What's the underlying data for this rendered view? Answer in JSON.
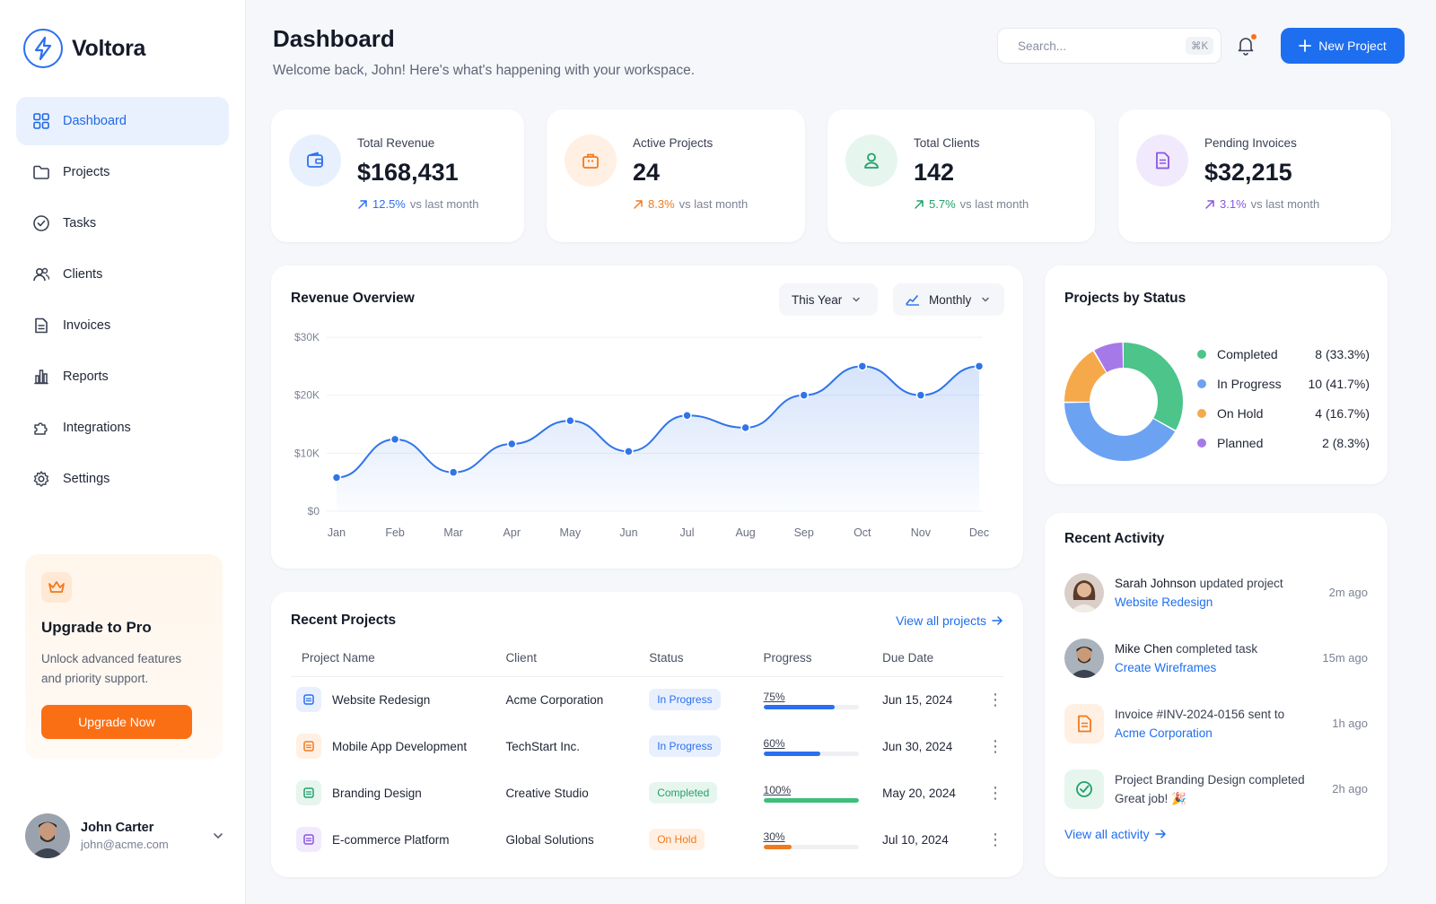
{
  "brand": {
    "name": "Voltora"
  },
  "nav": [
    {
      "label": "Dashboard",
      "icon": "grid-icon",
      "active": true
    },
    {
      "label": "Projects",
      "icon": "folder-icon"
    },
    {
      "label": "Tasks",
      "icon": "check-circle-icon"
    },
    {
      "label": "Clients",
      "icon": "users-icon"
    },
    {
      "label": "Invoices",
      "icon": "document-icon"
    },
    {
      "label": "Reports",
      "icon": "bar-chart-icon"
    },
    {
      "label": "Integrations",
      "icon": "puzzle-icon"
    },
    {
      "label": "Settings",
      "icon": "gear-icon"
    }
  ],
  "upgrade": {
    "title": "Upgrade to Pro",
    "text": "Unlock advanced features and priority support.",
    "button": "Upgrade Now"
  },
  "user": {
    "name": "John Carter",
    "email": "john@acme.com"
  },
  "header": {
    "title": "Dashboard",
    "subtitle": "Welcome back, John! Here's what's happening with your workspace.",
    "search_placeholder": "Search...",
    "search_shortcut": "⌘K",
    "new_button": "New Project"
  },
  "stats": [
    {
      "label": "Total Revenue",
      "value": "$168,431",
      "change": "12.5%",
      "suffix": "vs last month",
      "color": "#2b6ff0",
      "bg": "#e8f0fe",
      "icon": "wallet-icon"
    },
    {
      "label": "Active Projects",
      "value": "24",
      "change": "8.3%",
      "suffix": "vs last month",
      "color": "#f07a1e",
      "bg": "#fff0e3",
      "icon": "briefcase-icon"
    },
    {
      "label": "Total Clients",
      "value": "142",
      "change": "5.7%",
      "suffix": "vs last month",
      "color": "#22a06b",
      "bg": "#e6f6ee",
      "icon": "user-icon"
    },
    {
      "label": "Pending Invoices",
      "value": "$32,215",
      "change": "3.1%",
      "suffix": "vs last month",
      "color": "#8a55e0",
      "bg": "#f1eafd",
      "icon": "invoice-icon"
    }
  ],
  "revenue": {
    "title": "Revenue Overview",
    "period": "This Year",
    "granularity": "Monthly"
  },
  "chart_data": [
    {
      "type": "area",
      "title": "Revenue Overview",
      "x": [
        "Jan",
        "Feb",
        "Mar",
        "Apr",
        "May",
        "Jun",
        "Jul",
        "Aug",
        "Sep",
        "Oct",
        "Nov",
        "Dec"
      ],
      "series": [
        {
          "values": [
            5800,
            12400,
            6700,
            11600,
            15600,
            10300,
            16500,
            14400,
            20000,
            25000,
            20000,
            25000
          ]
        }
      ],
      "yticks": [
        "$0",
        "$10K",
        "$20K",
        "$30K"
      ],
      "ylim": [
        0,
        30000
      ],
      "color": "#2f74ea",
      "grid": true
    },
    {
      "type": "pie",
      "title": "Projects by Status",
      "categories": [
        "Completed",
        "In Progress",
        "On Hold",
        "Planned"
      ],
      "values": [
        8,
        10,
        4,
        2
      ],
      "labels": [
        "8 (33.3%)",
        "10 (41.7%)",
        "4 (16.7%)",
        "2 (8.3%)"
      ],
      "colors": [
        "#4cc48a",
        "#6ca2f2",
        "#f6a94a",
        "#a57ae8"
      ]
    }
  ],
  "status_card": {
    "title": "Projects by Status"
  },
  "projects": {
    "title": "Recent Projects",
    "view_all": "View all projects",
    "columns": [
      "Project Name",
      "Client",
      "Status",
      "Progress",
      "Due Date"
    ],
    "rows": [
      {
        "name": "Website Redesign",
        "client": "Acme Corporation",
        "status": "In Progress",
        "progress": 75,
        "progress_label": "75%",
        "due": "Jun 15, 2024",
        "icon_color": "#2b6ff0",
        "icon_bg": "#e8f0fe",
        "bar": "#2b6ff0",
        "badge_fg": "#2b6ff0",
        "badge_bg": "#e8f0fe"
      },
      {
        "name": "Mobile App Development",
        "client": "TechStart Inc.",
        "status": "In Progress",
        "progress": 60,
        "progress_label": "60%",
        "due": "Jun 30, 2024",
        "icon_color": "#f07a1e",
        "icon_bg": "#fff0e3",
        "bar": "#2b6ff0",
        "badge_fg": "#2b6ff0",
        "badge_bg": "#e8f0fe"
      },
      {
        "name": "Branding Design",
        "client": "Creative Studio",
        "status": "Completed",
        "progress": 100,
        "progress_label": "100%",
        "due": "May 20, 2024",
        "icon_color": "#22a06b",
        "icon_bg": "#e6f6ee",
        "bar": "#3fbe7c",
        "badge_fg": "#22a06b",
        "badge_bg": "#e6f6ee"
      },
      {
        "name": "E-commerce Platform",
        "client": "Global Solutions",
        "status": "On Hold",
        "progress": 30,
        "progress_label": "30%",
        "due": "Jul 10, 2024",
        "icon_color": "#8a55e0",
        "icon_bg": "#f1eafd",
        "bar": "#f07a1e",
        "badge_fg": "#f07a1e",
        "badge_bg": "#fff0e3"
      }
    ]
  },
  "activity": {
    "title": "Recent Activity",
    "view_all": "View all activity",
    "items": [
      {
        "actor": "Sarah Johnson",
        "action": "updated project",
        "target": "Website Redesign",
        "time": "2m ago",
        "kind": "avatar-woman"
      },
      {
        "actor": "Mike Chen",
        "action": "completed task",
        "target": "Create Wireframes",
        "time": "15m ago",
        "kind": "avatar-man"
      },
      {
        "actor": "",
        "action": "Invoice #INV-2024-0156 sent to",
        "target": "Acme Corporation",
        "time": "1h ago",
        "kind": "invoice-icon"
      },
      {
        "actor": "",
        "action": "Project Branding Design completed",
        "target": "Great job! 🎉",
        "time": "2h ago",
        "kind": "check-icon"
      }
    ]
  }
}
